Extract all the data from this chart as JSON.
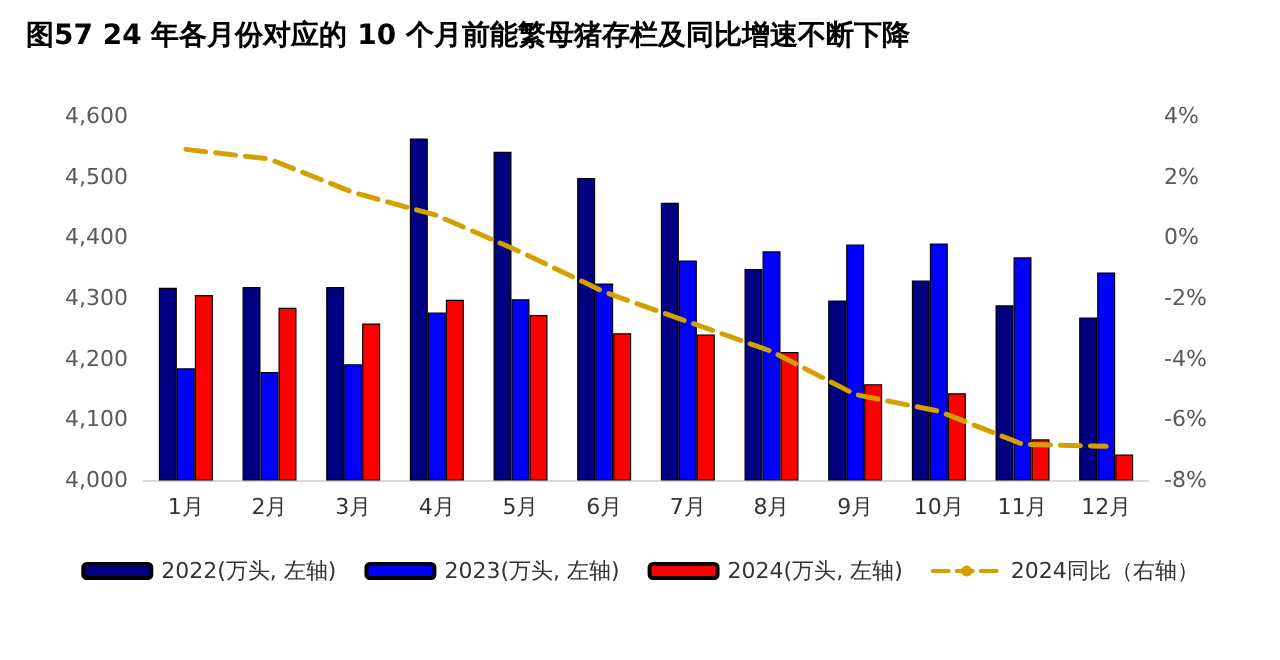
{
  "chart_data": {
    "type": "bar",
    "title": "图57 24 年各月份对应的 10 个月前能繁母猪存栏及同比增速不断下降",
    "categories": [
      "1月",
      "2月",
      "3月",
      "4月",
      "5月",
      "6月",
      "7月",
      "8月",
      "9月",
      "10月",
      "11月",
      "12月"
    ],
    "series": [
      {
        "name": "2022(万头, 左轴)",
        "color": "#000080",
        "values": [
          4317,
          4318,
          4318,
          4563,
          4541,
          4498,
          4457,
          4348,
          4296,
          4329,
          4288,
          4268
        ]
      },
      {
        "name": "2023(万头, 左轴)",
        "color": "#0000ff",
        "values": [
          4184,
          4178,
          4191,
          4276,
          4298,
          4324,
          4362,
          4377,
          4388,
          4390,
          4367,
          4342
        ]
      },
      {
        "name": "2024(万头, 左轴)",
        "color": "#ff0000",
        "values": [
          4305,
          4284,
          4258,
          4297,
          4272,
          4242,
          4240,
          4211,
          4158,
          4143,
          4067,
          4042
        ]
      },
      {
        "name": "2024同比（右轴）",
        "type": "line",
        "axis": "y2",
        "color": "#d4a000",
        "line_style": "dashed",
        "marker": "none",
        "values": [
          2.9,
          2.58,
          1.48,
          0.72,
          -0.48,
          -1.8,
          -2.78,
          -3.76,
          -5.18,
          -5.73,
          -6.82,
          -6.89
        ]
      }
    ],
    "ylim": [
      4000,
      4600
    ],
    "yticks": [
      {
        "value": 4000,
        "label": "4,000"
      },
      {
        "value": 4100,
        "label": "4,100"
      },
      {
        "value": 4200,
        "label": "4,200"
      },
      {
        "value": 4300,
        "label": "4,300"
      },
      {
        "value": 4400,
        "label": "4,400"
      },
      {
        "value": 4500,
        "label": "4,500"
      },
      {
        "value": 4600,
        "label": "4,600"
      }
    ],
    "y2lim": [
      -8,
      4
    ],
    "y2ticks": [
      {
        "value": -8,
        "label": "-8%"
      },
      {
        "value": -6,
        "label": "-6%"
      },
      {
        "value": -4,
        "label": "-4%"
      },
      {
        "value": -2,
        "label": "-2%"
      },
      {
        "value": 0,
        "label": "0%"
      },
      {
        "value": 2,
        "label": "2%"
      },
      {
        "value": 4,
        "label": "4%"
      }
    ],
    "legend": "bottom"
  }
}
